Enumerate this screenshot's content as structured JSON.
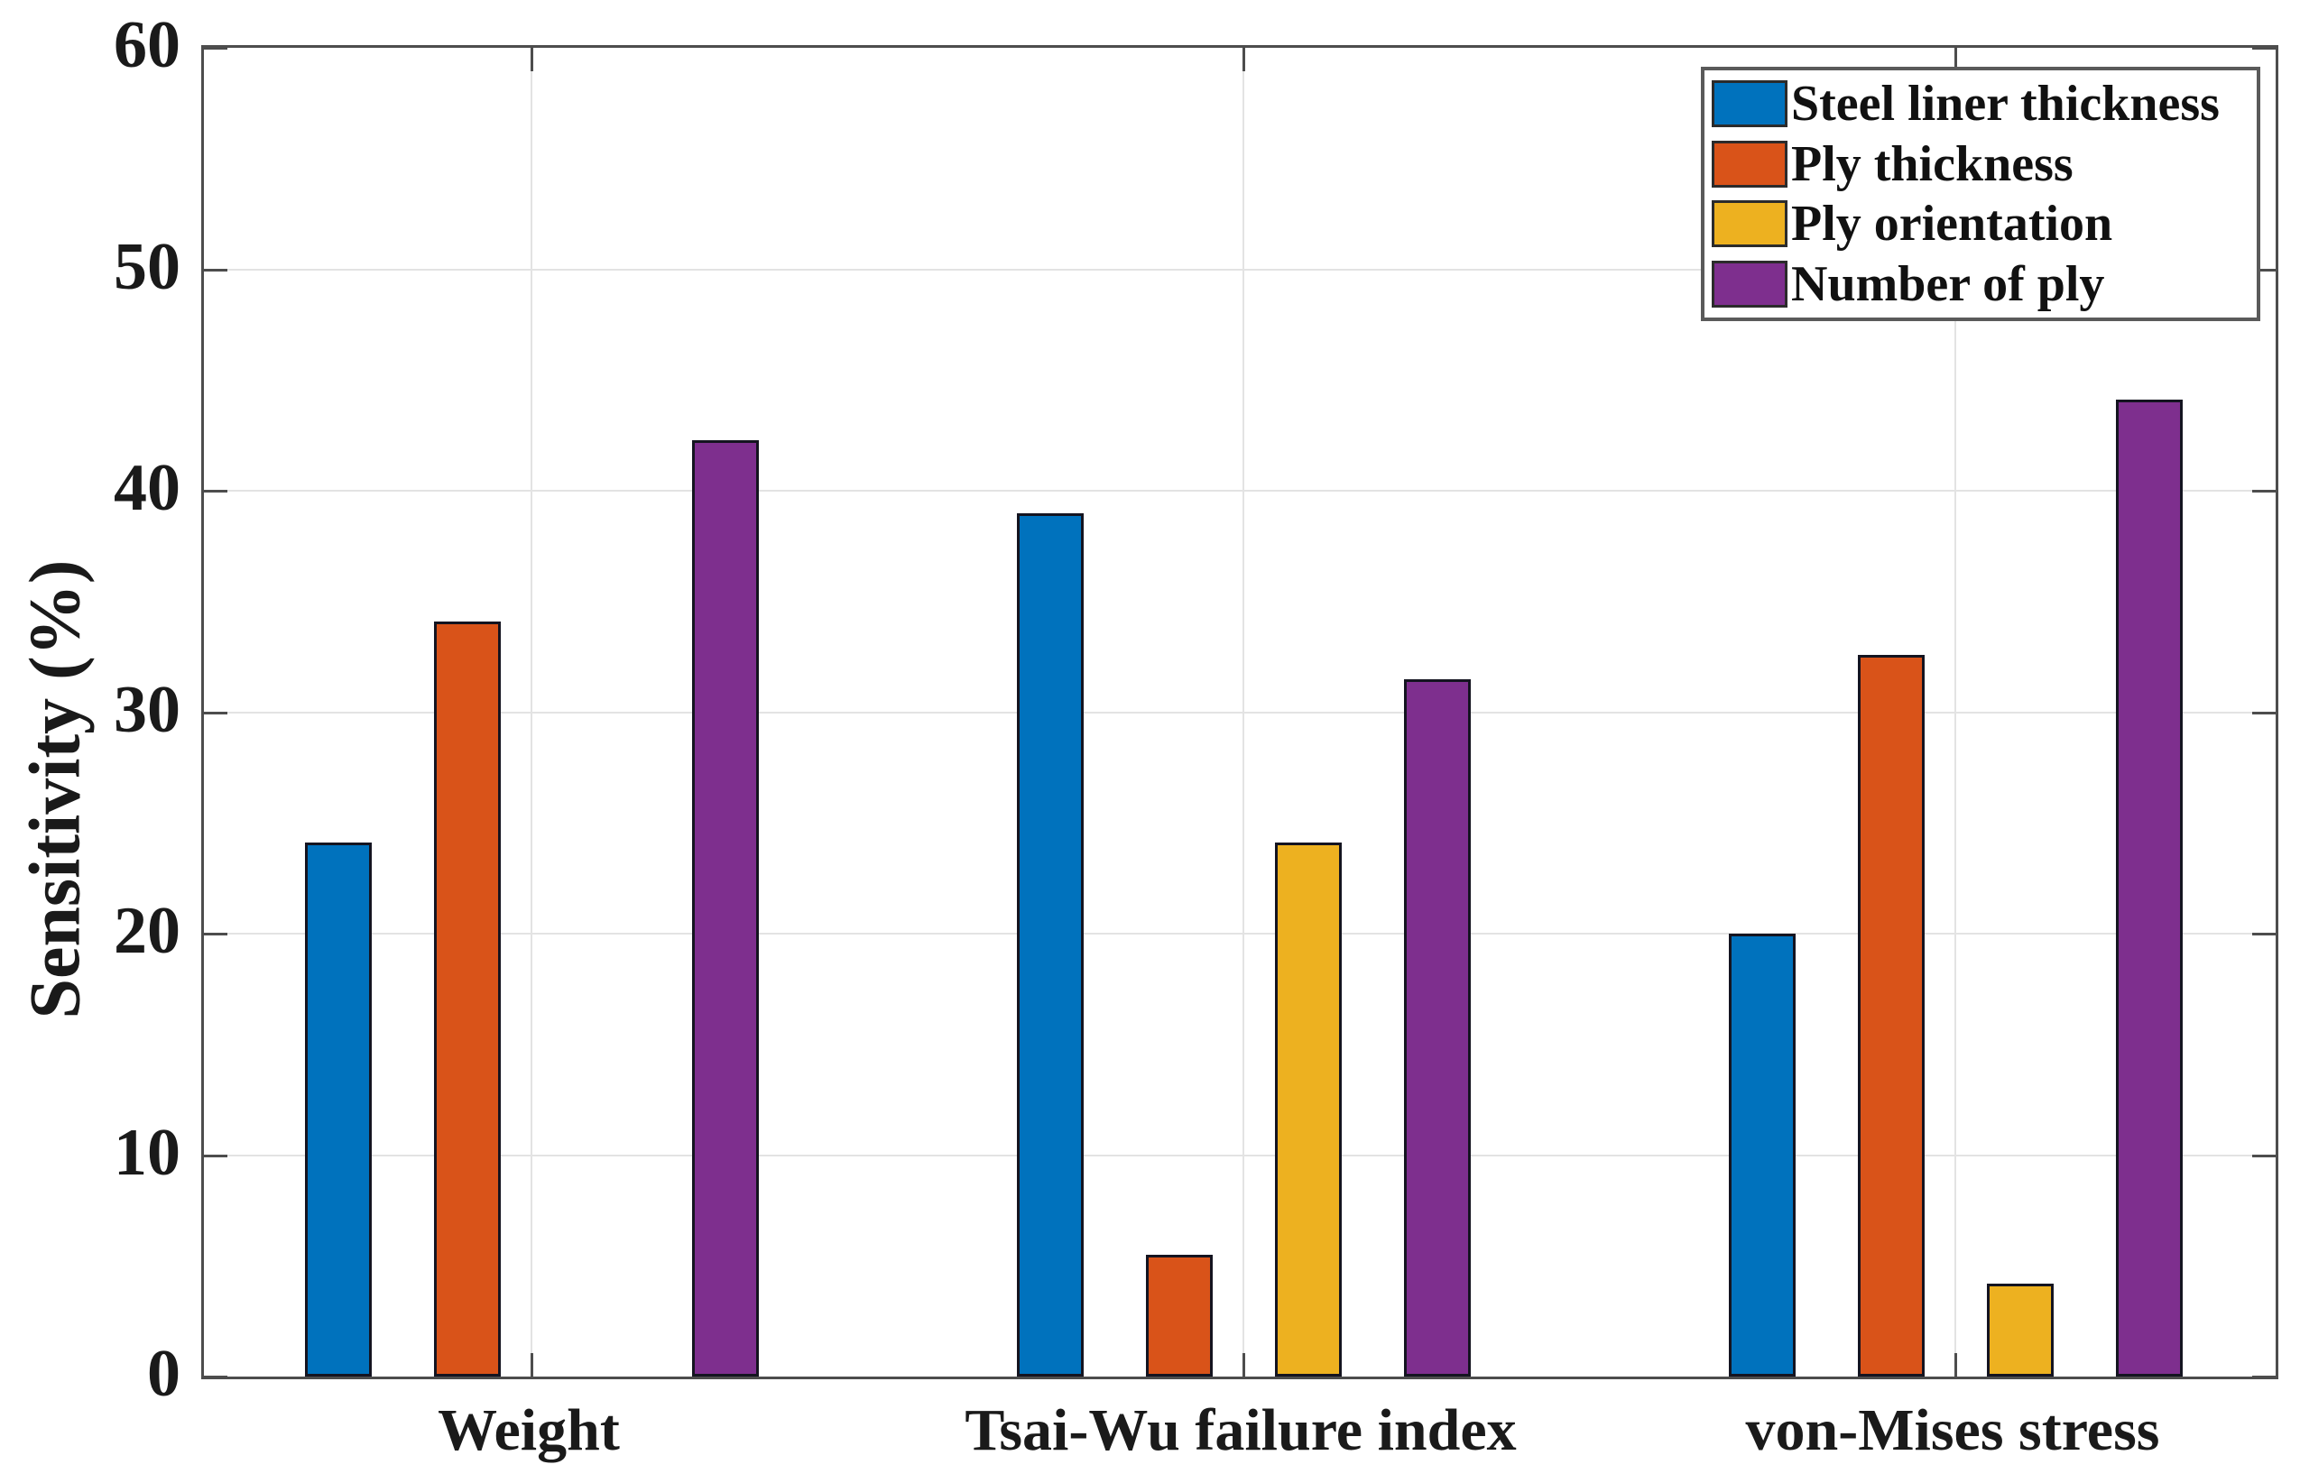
{
  "chart_data": {
    "type": "bar",
    "title": "",
    "xlabel": "",
    "ylabel": "Sensitivity (%)",
    "categories": [
      "Weight",
      "Tsai-Wu failure index",
      "von-Mises stress"
    ],
    "series": [
      {
        "name": "Steel liner thickness",
        "color": "#0072BD",
        "values": [
          24.1,
          39.0,
          20.0
        ]
      },
      {
        "name": "Ply thickness",
        "color": "#D95319",
        "values": [
          34.1,
          5.5,
          32.6
        ]
      },
      {
        "name": "Ply orientation",
        "color": "#EDB120",
        "values": [
          0,
          24.1,
          4.2
        ]
      },
      {
        "name": "Number of ply",
        "color": "#7E2F8E",
        "values": [
          42.3,
          31.5,
          44.1
        ]
      }
    ],
    "ylim": [
      0,
      60
    ],
    "yticks": [
      0,
      10,
      20,
      30,
      40,
      50,
      60
    ],
    "grid": true,
    "legend_position": "top-right",
    "axis_color": "#4d4d4d",
    "grid_color": "#e3e3e3"
  }
}
